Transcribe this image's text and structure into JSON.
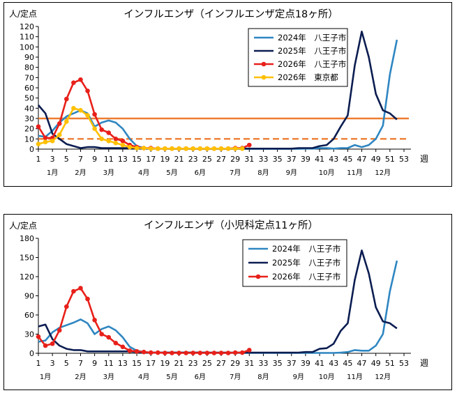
{
  "chart_data": [
    {
      "type": "line",
      "title": "インフルエンザ（インフルエンザ定点18ヶ所）",
      "ylabel": "人/定点",
      "xlabel": "週",
      "ylim": [
        0,
        120
      ],
      "yticks": [
        0,
        10,
        20,
        30,
        40,
        50,
        60,
        70,
        80,
        90,
        100,
        110,
        120
      ],
      "xticks": [
        1,
        3,
        5,
        7,
        9,
        11,
        13,
        15,
        17,
        19,
        21,
        23,
        25,
        27,
        29,
        31,
        33,
        35,
        37,
        39,
        41,
        43,
        45,
        47,
        49,
        51,
        53
      ],
      "months": [
        {
          "label": "1月",
          "week": 3
        },
        {
          "label": "2月",
          "week": 7
        },
        {
          "label": "3月",
          "week": 11
        },
        {
          "label": "4月",
          "week": 16
        },
        {
          "label": "5月",
          "week": 20
        },
        {
          "label": "6月",
          "week": 24
        },
        {
          "label": "7月",
          "week": 29
        },
        {
          "label": "8月",
          "week": 33
        },
        {
          "label": "9月",
          "week": 37
        },
        {
          "label": "10月",
          "week": 42
        },
        {
          "label": "11月",
          "week": 46
        },
        {
          "label": "12月",
          "week": 50
        }
      ],
      "thresholds": [
        {
          "value": 30,
          "style": "solid",
          "color": "#ED7D31"
        },
        {
          "value": 10,
          "style": "dashed",
          "color": "#ED7D31"
        }
      ],
      "legend_position": "top-right",
      "series": [
        {
          "name": "2024年　八王子市",
          "color": "#2E86C1",
          "marker": false,
          "x": [
            1,
            2,
            3,
            4,
            5,
            6,
            7,
            8,
            9,
            10,
            11,
            12,
            13,
            14,
            15,
            16,
            17,
            18,
            19,
            20,
            21,
            22,
            23,
            24,
            25,
            26,
            27,
            28,
            29,
            30,
            31,
            32,
            33,
            34,
            35,
            36,
            37,
            38,
            39,
            40,
            41,
            42,
            43,
            44,
            45,
            46,
            47,
            48,
            49,
            50,
            51,
            52
          ],
          "values": [
            13,
            12,
            18,
            26,
            32,
            35,
            38,
            35,
            22,
            26,
            28,
            26,
            20,
            10,
            3,
            1,
            0.5,
            0.5,
            0.5,
            0.3,
            0.3,
            0.3,
            0.3,
            0.3,
            0.3,
            0.3,
            0.3,
            0.3,
            0.3,
            0.3,
            0.3,
            0.3,
            0.3,
            0.3,
            0.3,
            0.3,
            0.3,
            0.3,
            0.5,
            0.5,
            1,
            1,
            0.5,
            1,
            1,
            4,
            2,
            4,
            10,
            23,
            73,
            107
          ]
        },
        {
          "name": "2025年　八王子市",
          "color": "#0B1D51",
          "marker": false,
          "x": [
            1,
            2,
            3,
            4,
            5,
            6,
            7,
            8,
            9,
            10,
            11,
            12,
            13,
            14,
            15,
            16,
            17,
            18,
            19,
            20,
            21,
            22,
            23,
            24,
            25,
            26,
            27,
            28,
            29,
            30,
            31,
            32,
            33,
            34,
            35,
            36,
            37,
            38,
            39,
            40,
            41,
            42,
            43,
            44,
            45,
            46,
            47,
            48,
            49,
            50,
            51,
            52
          ],
          "values": [
            43,
            35,
            15,
            10,
            5,
            3,
            1,
            2,
            2,
            1,
            1,
            1,
            1,
            1,
            1,
            0.5,
            0.5,
            0.5,
            0.5,
            0.5,
            0.5,
            0.5,
            0.5,
            0.5,
            0.5,
            0.5,
            0.5,
            0.5,
            0.5,
            0.5,
            0.5,
            0.5,
            0.5,
            0.5,
            0.5,
            0.5,
            0.5,
            1,
            1,
            1,
            3,
            4,
            10,
            22,
            33,
            82,
            115,
            90,
            54,
            38,
            35,
            29
          ]
        },
        {
          "name": "2026年　八王子市",
          "color": "#E8201A",
          "marker": true,
          "x": [
            1,
            2,
            3,
            4,
            5,
            6,
            7,
            8,
            9,
            10,
            11,
            12,
            13,
            14,
            15,
            16,
            17,
            18,
            19,
            20,
            21,
            22,
            23,
            24,
            25,
            26,
            27,
            28,
            29,
            30,
            31
          ],
          "values": [
            22,
            11,
            11,
            25,
            49,
            65,
            68,
            57,
            34,
            19,
            16,
            10,
            8,
            4,
            2,
            1,
            1,
            0.5,
            0.5,
            0.5,
            0.5,
            0.5,
            0.5,
            0.5,
            0.5,
            0.5,
            0.5,
            0.5,
            1,
            1,
            4
          ]
        },
        {
          "name": "2026年　東京都",
          "color": "#FFC000",
          "marker": true,
          "x": [
            1,
            2,
            3,
            4,
            5,
            6,
            7,
            8,
            9,
            10,
            11,
            12,
            13,
            14,
            15,
            16,
            17,
            18,
            19,
            20,
            21,
            22,
            23,
            24,
            25,
            26,
            27,
            28,
            29,
            30
          ],
          "values": [
            5,
            7,
            8,
            14,
            27,
            40,
            38,
            33,
            20,
            10,
            8,
            6,
            4,
            2,
            1,
            1,
            0.5,
            0.5,
            0.5,
            0.5,
            0.5,
            0.5,
            0.5,
            0.5,
            0.5,
            0.5,
            0.5,
            0.5,
            0.5,
            0.5
          ]
        }
      ]
    },
    {
      "type": "line",
      "title": "インフルエンザ（小児科定点11ヶ所）",
      "ylabel": "人/定点",
      "xlabel": "週",
      "ylim": [
        0,
        180
      ],
      "yticks": [
        0,
        30,
        60,
        90,
        120,
        150,
        180
      ],
      "xticks": [
        1,
        3,
        5,
        7,
        9,
        11,
        13,
        15,
        17,
        19,
        21,
        23,
        25,
        27,
        29,
        31,
        33,
        35,
        37,
        39,
        41,
        43,
        45,
        47,
        49,
        51,
        53
      ],
      "months": [
        {
          "label": "1月",
          "week": 2
        },
        {
          "label": "2月",
          "week": 7
        },
        {
          "label": "3月",
          "week": 11
        },
        {
          "label": "4月",
          "week": 16
        },
        {
          "label": "5月",
          "week": 20
        },
        {
          "label": "6月",
          "week": 24
        },
        {
          "label": "7月",
          "week": 29
        },
        {
          "label": "8月",
          "week": 33
        },
        {
          "label": "9月",
          "week": 38
        },
        {
          "label": "10月",
          "week": 42
        },
        {
          "label": "11月",
          "week": 46
        },
        {
          "label": "12月",
          "week": 50
        }
      ],
      "thresholds": [],
      "legend_position": "top-right",
      "series": [
        {
          "name": "2024年　八王子市",
          "color": "#2E86C1",
          "marker": false,
          "x": [
            1,
            2,
            3,
            4,
            5,
            6,
            7,
            8,
            9,
            10,
            11,
            12,
            13,
            14,
            15,
            16,
            17,
            18,
            19,
            20,
            21,
            22,
            23,
            24,
            25,
            26,
            27,
            28,
            29,
            30,
            31,
            32,
            33,
            34,
            35,
            36,
            37,
            38,
            39,
            40,
            41,
            42,
            43,
            44,
            45,
            46,
            47,
            48,
            49,
            50,
            51,
            52
          ],
          "values": [
            18,
            20,
            33,
            40,
            44,
            48,
            53,
            47,
            30,
            38,
            42,
            36,
            25,
            10,
            4,
            2,
            1,
            1,
            1,
            1,
            1,
            1,
            1,
            1,
            1,
            0.5,
            0.5,
            0.5,
            0.5,
            0.5,
            0.5,
            0.5,
            0.5,
            0.5,
            0.5,
            0.5,
            0.5,
            0.5,
            0.5,
            0.5,
            0.5,
            0.5,
            0.5,
            1,
            2,
            5,
            4,
            4,
            12,
            30,
            97,
            145
          ]
        },
        {
          "name": "2025年　八王子市",
          "color": "#0B1D51",
          "marker": false,
          "x": [
            1,
            2,
            3,
            4,
            5,
            6,
            7,
            8,
            9,
            10,
            11,
            12,
            13,
            14,
            15,
            16,
            17,
            18,
            19,
            20,
            21,
            22,
            23,
            24,
            25,
            26,
            27,
            28,
            29,
            30,
            31,
            32,
            33,
            34,
            35,
            36,
            37,
            38,
            39,
            40,
            41,
            42,
            43,
            44,
            45,
            46,
            47,
            48,
            49,
            50,
            51,
            52
          ],
          "values": [
            42,
            45,
            22,
            12,
            7,
            5,
            5,
            3,
            3,
            3,
            3,
            3,
            3,
            3,
            2,
            1,
            1,
            1,
            1,
            1,
            1,
            1,
            1,
            1,
            1,
            1,
            1,
            1,
            1,
            1,
            1,
            1,
            1,
            1,
            1,
            1,
            1,
            1,
            2,
            2,
            7,
            8,
            15,
            35,
            47,
            115,
            161,
            125,
            72,
            50,
            47,
            39
          ]
        },
        {
          "name": "2026年　八王子市",
          "color": "#E8201A",
          "marker": true,
          "x": [
            1,
            2,
            3,
            4,
            5,
            6,
            7,
            8,
            9,
            10,
            11,
            12,
            13,
            14,
            15,
            16,
            17,
            18,
            19,
            20,
            21,
            22,
            23,
            24,
            25,
            26,
            27,
            28,
            29,
            30,
            31
          ],
          "values": [
            26,
            12,
            15,
            36,
            73,
            97,
            102,
            85,
            52,
            30,
            25,
            16,
            10,
            4,
            3,
            2,
            1,
            1,
            0.5,
            0.5,
            0.5,
            0.5,
            0.5,
            0.5,
            0.5,
            0.5,
            0.5,
            0.5,
            1,
            1,
            5
          ]
        }
      ]
    }
  ]
}
